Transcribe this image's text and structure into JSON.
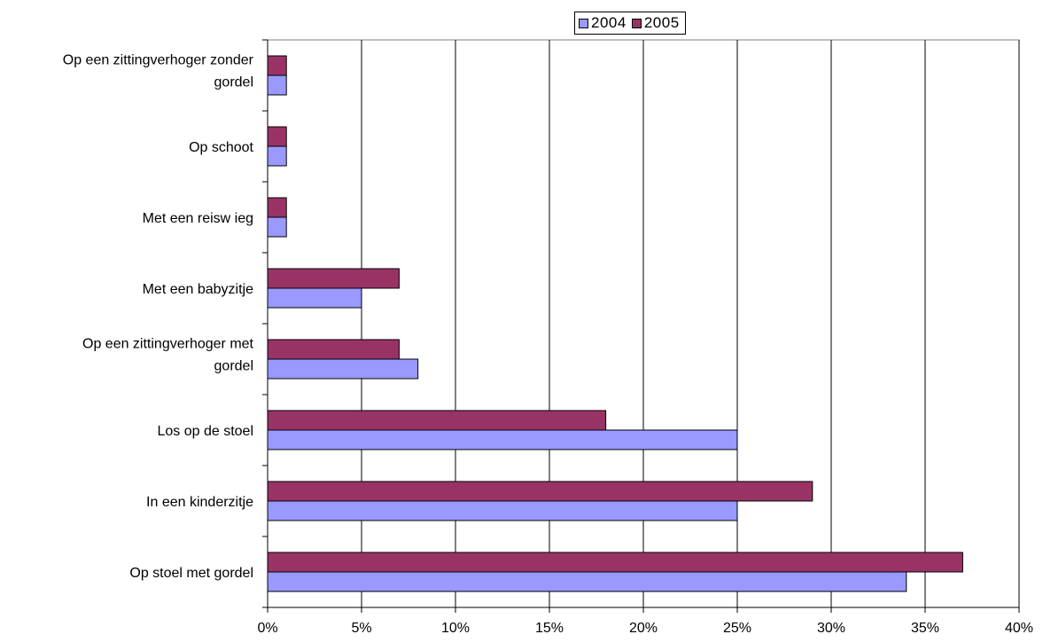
{
  "chart_data": {
    "type": "bar",
    "orientation": "horizontal",
    "categories": [
      [
        "Op een zittingverhoger zonder",
        "gordel"
      ],
      [
        "Op schoot"
      ],
      [
        "Met een reisw ieg"
      ],
      [
        "Met een babyzitje"
      ],
      [
        "Op een zittingverhoger met",
        "gordel"
      ],
      [
        "Los op de stoel"
      ],
      [
        "In een kinderzitje"
      ],
      [
        "Op stoel met gordel"
      ]
    ],
    "series": [
      {
        "name": "2004",
        "color": "#9999ff",
        "values": [
          1,
          1,
          1,
          5,
          8,
          25,
          25,
          34
        ]
      },
      {
        "name": "2005",
        "color": "#993366",
        "values": [
          1,
          1,
          1,
          7,
          7,
          18,
          29,
          37
        ]
      }
    ],
    "xlim": [
      0,
      40
    ],
    "xticks": [
      0,
      5,
      10,
      15,
      20,
      25,
      30,
      35,
      40
    ],
    "xtick_labels": [
      "0%",
      "5%",
      "10%",
      "15%",
      "20%",
      "25%",
      "30%",
      "35%",
      "40%"
    ],
    "grid": "vertical",
    "legend_position": "top"
  }
}
